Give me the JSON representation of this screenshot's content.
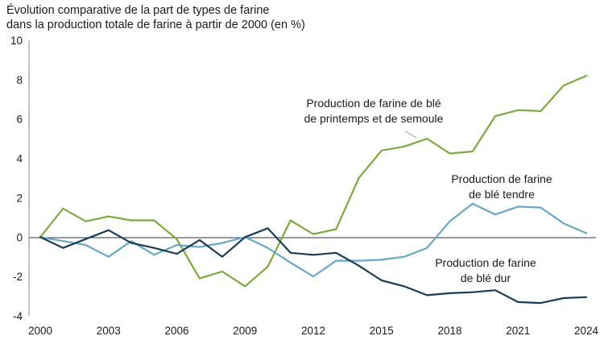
{
  "chart_data": {
    "type": "line",
    "title": "Évolution comparative de la part de types de farine",
    "subtitle": "dans la production totale de farine à partir de 2000 (en %)",
    "xlabel": "",
    "ylabel": "",
    "xlim": [
      2000,
      2024
    ],
    "ylim": [
      -4,
      10
    ],
    "grid": false,
    "x_ticks": [
      "2000",
      "2003",
      "2006",
      "2009",
      "2012",
      "2015",
      "2018",
      "2021",
      "2024"
    ],
    "y_ticks": [
      "10",
      "8",
      "6",
      "4",
      "2",
      "0",
      "-2",
      "-4"
    ],
    "x": [
      2000,
      2001,
      2002,
      2003,
      2004,
      2005,
      2006,
      2007,
      2008,
      2009,
      2010,
      2011,
      2012,
      2013,
      2014,
      2015,
      2016,
      2017,
      2018,
      2019,
      2020,
      2021,
      2022,
      2023,
      2024
    ],
    "series": [
      {
        "name": "Production de farine de blé de printemps et de semoule",
        "color": "#7bab3c",
        "values": [
          0,
          1.45,
          0.8,
          1.05,
          0.85,
          0.85,
          -0.1,
          -2.1,
          -1.75,
          -2.5,
          -1.5,
          0.85,
          0.15,
          0.4,
          3.0,
          4.4,
          4.6,
          5.0,
          4.25,
          4.35,
          6.15,
          6.45,
          6.4,
          7.7,
          8.2
        ]
      },
      {
        "name": "Production de farine de blé tendre",
        "color": "#65a8c9",
        "values": [
          0,
          -0.2,
          -0.4,
          -1.0,
          -0.2,
          -0.9,
          -0.4,
          -0.5,
          -0.3,
          0.0,
          -0.55,
          -1.3,
          -2.0,
          -1.2,
          -1.2,
          -1.15,
          -1.0,
          -0.55,
          0.8,
          1.7,
          1.15,
          1.55,
          1.5,
          0.7,
          0.2
        ]
      },
      {
        "name": "Production de farine de blé dur",
        "color": "#173d5e",
        "values": [
          0,
          -0.55,
          -0.1,
          0.35,
          -0.3,
          -0.55,
          -0.85,
          -0.15,
          -1.0,
          0.0,
          0.45,
          -0.8,
          -0.9,
          -0.8,
          -1.45,
          -2.2,
          -2.5,
          -2.95,
          -2.85,
          -2.8,
          -2.7,
          -3.3,
          -3.35,
          -3.1,
          -3.05
        ]
      }
    ],
    "annotations": [
      {
        "lines": [
          "Production de farine de blé",
          "de printemps et de semoule"
        ]
      },
      {
        "lines": [
          "Production de farine",
          "de blé tendre"
        ]
      },
      {
        "lines": [
          "Production de farine",
          "de blé dur"
        ]
      }
    ]
  }
}
